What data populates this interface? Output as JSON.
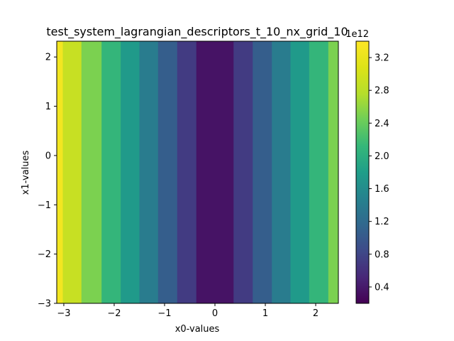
{
  "chart_data": {
    "type": "heatmap",
    "title": "test_system_lagrangian_descriptors_t_10_nx_grid_10",
    "xlabel": "x0-values",
    "ylabel": "x1-values",
    "xlim": [
      -3.14,
      2.45
    ],
    "ylim": [
      -3.0,
      2.32
    ],
    "x_ticks": [
      -3,
      -2,
      -1,
      0,
      1,
      2
    ],
    "x_tick_labels": [
      "−3",
      "−2",
      "−1",
      "0",
      "1",
      "2"
    ],
    "y_ticks": [
      -3,
      -2,
      -1,
      0,
      1,
      2
    ],
    "y_tick_labels": [
      "−3",
      "−2",
      "−1",
      "0",
      "1",
      "2"
    ],
    "grid": false,
    "colormap": "viridis",
    "colorbar": {
      "range": [
        0.2,
        3.4
      ],
      "ticks": [
        0.4,
        0.8,
        1.2,
        1.6,
        2.0,
        2.4,
        2.8,
        3.2
      ],
      "tick_labels": [
        "0.4",
        "0.8",
        "1.2",
        "1.6",
        "2.0",
        "2.4",
        "2.8",
        "3.2"
      ],
      "offset_label": "1e12"
    },
    "bands": [
      {
        "x0": -3.14,
        "x1": -3.02,
        "value": 3.3
      },
      {
        "x0": -3.02,
        "x1": -2.65,
        "value": 2.9
      },
      {
        "x0": -2.65,
        "x1": -2.25,
        "value": 2.5
      },
      {
        "x0": -2.25,
        "x1": -1.87,
        "value": 2.1
      },
      {
        "x0": -1.87,
        "x1": -1.5,
        "value": 1.75
      },
      {
        "x0": -1.5,
        "x1": -1.13,
        "value": 1.4
      },
      {
        "x0": -1.13,
        "x1": -0.75,
        "value": 1.05
      },
      {
        "x0": -0.75,
        "x1": -0.37,
        "value": 0.7
      },
      {
        "x0": -0.37,
        "x1": 0.37,
        "value": 0.35
      },
      {
        "x0": 0.37,
        "x1": 0.75,
        "value": 0.7
      },
      {
        "x0": 0.75,
        "x1": 1.13,
        "value": 1.05
      },
      {
        "x0": 1.13,
        "x1": 1.5,
        "value": 1.4
      },
      {
        "x0": 1.5,
        "x1": 1.87,
        "value": 1.75
      },
      {
        "x0": 1.87,
        "x1": 2.25,
        "value": 2.1
      },
      {
        "x0": 2.25,
        "x1": 2.45,
        "value": 2.5
      }
    ]
  }
}
